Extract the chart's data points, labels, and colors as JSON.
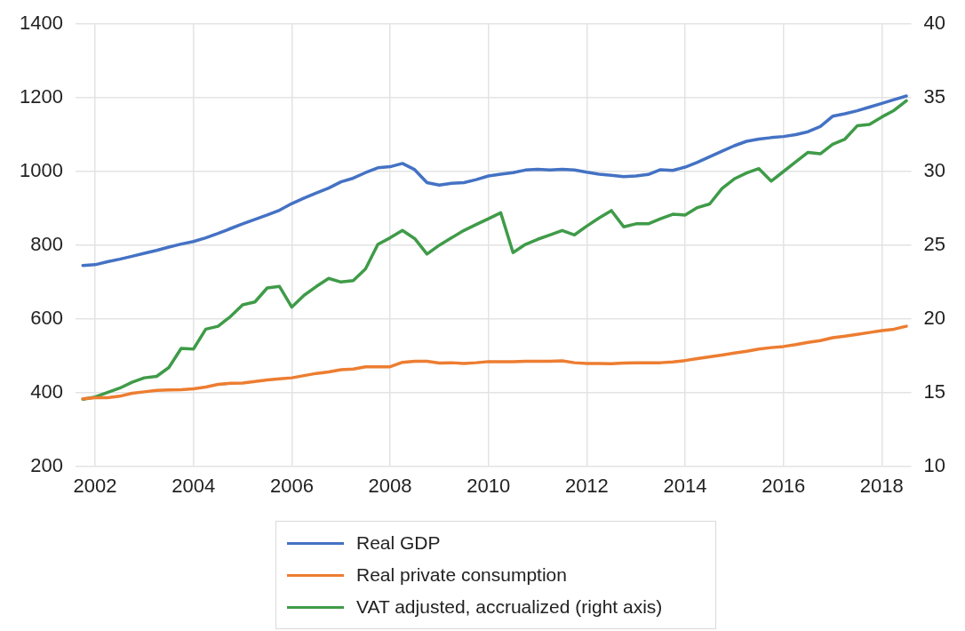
{
  "chart_data": {
    "type": "line",
    "x": [
      2001.75,
      2002,
      2002.25,
      2002.5,
      2002.75,
      2003,
      2003.25,
      2003.5,
      2003.75,
      2004,
      2004.25,
      2004.5,
      2004.75,
      2005,
      2005.25,
      2005.5,
      2005.75,
      2006,
      2006.25,
      2006.5,
      2006.75,
      2007,
      2007.25,
      2007.5,
      2007.75,
      2008,
      2008.25,
      2008.5,
      2008.75,
      2009,
      2009.25,
      2009.5,
      2009.75,
      2010,
      2010.25,
      2010.5,
      2010.75,
      2011,
      2011.25,
      2011.5,
      2011.75,
      2012,
      2012.25,
      2012.5,
      2012.75,
      2013,
      2013.25,
      2013.5,
      2013.75,
      2014,
      2014.25,
      2014.5,
      2014.75,
      2015,
      2015.25,
      2015.5,
      2015.75,
      2016,
      2016.25,
      2016.5,
      2016.75,
      2017,
      2017.25,
      2017.5,
      2017.75,
      2018,
      2018.25,
      2018.5
    ],
    "series": [
      {
        "name": "Real GDP",
        "color": "#4472c4",
        "values": [
          745,
          747,
          755,
          762,
          770,
          778,
          786,
          795,
          803,
          810,
          820,
          832,
          845,
          858,
          870,
          882,
          895,
          913,
          928,
          942,
          955,
          972,
          982,
          997,
          1010,
          1013,
          1022,
          1005,
          970,
          963,
          968,
          970,
          978,
          988,
          993,
          997,
          1004,
          1006,
          1004,
          1006,
          1004,
          998,
          993,
          990,
          986,
          988,
          992,
          1005,
          1003,
          1012,
          1025,
          1040,
          1055,
          1070,
          1082,
          1088,
          1092,
          1095,
          1100,
          1108,
          1122,
          1150,
          1157,
          1165,
          1175,
          1185,
          1195,
          1205
        ]
      },
      {
        "name": "Real private consumption",
        "color": "#ed7d31",
        "values": [
          383,
          386,
          386,
          390,
          398,
          402,
          406,
          407,
          408,
          410,
          415,
          422,
          425,
          426,
          430,
          434,
          437,
          440,
          446,
          452,
          456,
          462,
          464,
          470,
          470,
          470,
          482,
          485,
          485,
          480,
          481,
          479,
          481,
          484,
          484,
          484,
          485,
          485,
          485,
          486,
          481,
          479,
          479,
          478,
          480,
          481,
          481,
          481,
          483,
          487,
          492,
          497,
          502,
          507,
          512,
          518,
          522,
          525,
          530,
          536,
          541,
          549,
          553,
          558,
          563,
          568,
          572,
          580
        ]
      },
      {
        "name": "VAT adjusted, accrualized (right axis)",
        "color": "#3f9b48",
        "axis": "y2",
        "values": [
          14.55,
          14.7,
          15.0,
          15.3,
          15.7,
          16.0,
          16.1,
          16.7,
          18.0,
          17.95,
          19.3,
          19.5,
          20.15,
          20.95,
          21.15,
          22.1,
          22.2,
          20.8,
          21.6,
          22.2,
          22.75,
          22.5,
          22.6,
          23.4,
          25.05,
          25.5,
          26.0,
          25.45,
          24.4,
          25.0,
          25.5,
          26.0,
          26.4,
          26.8,
          27.2,
          24.5,
          25.05,
          25.4,
          25.7,
          26.0,
          25.7,
          26.3,
          26.85,
          27.35,
          26.25,
          26.45,
          26.45,
          26.8,
          27.1,
          27.05,
          27.55,
          27.8,
          28.85,
          29.5,
          29.9,
          30.2,
          29.35,
          30.0,
          30.65,
          31.3,
          31.2,
          31.85,
          32.2,
          33.1,
          33.2,
          33.7,
          34.15,
          34.8
        ]
      }
    ],
    "xlim": [
      2001.6,
      2018.6
    ],
    "xticks": [
      2002,
      2004,
      2006,
      2008,
      2010,
      2012,
      2014,
      2016,
      2018
    ],
    "ylim": [
      200,
      1400
    ],
    "yticks": [
      200,
      400,
      600,
      800,
      1000,
      1200,
      1400
    ],
    "y2lim": [
      10,
      40
    ],
    "y2ticks": [
      10,
      15,
      20,
      25,
      30,
      35,
      40
    ],
    "grid": true,
    "legend": "bottom",
    "marker": "none",
    "line_style": "solid"
  }
}
